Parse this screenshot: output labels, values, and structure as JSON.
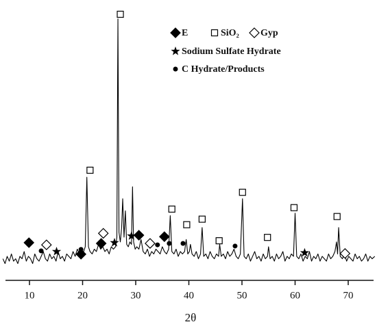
{
  "chart_data": {
    "type": "line",
    "xlabel": "2θ",
    "xlim": [
      5,
      75
    ],
    "xticks": [
      10,
      20,
      30,
      40,
      50,
      60,
      70
    ],
    "ylim": [
      0,
      114
    ],
    "series": [
      {
        "color": "#000000",
        "x": [
          5,
          5.4,
          5.8,
          6.2,
          6.6,
          7,
          7.4,
          7.8,
          8.2,
          8.6,
          9,
          9.4,
          9.8,
          10.2,
          10.6,
          11,
          11.4,
          11.8,
          12.2,
          12.6,
          13,
          13.4,
          13.8,
          14.2,
          14.6,
          15,
          15.4,
          15.8,
          16.2,
          16.6,
          17,
          17.4,
          17.8,
          18.2,
          18.6,
          19,
          19.4,
          19.8,
          20.2,
          20.5,
          20.8,
          21.1,
          21.4,
          21.8,
          22.2,
          22.6,
          23,
          23.4,
          23.8,
          24.2,
          24.6,
          25,
          25.4,
          25.8,
          26.2,
          26.45,
          26.65,
          26.85,
          27.1,
          27.35,
          27.55,
          27.8,
          28.05,
          28.3,
          28.6,
          28.9,
          29.2,
          29.4,
          29.6,
          29.9,
          30.2,
          30.6,
          31,
          31.4,
          31.8,
          32.2,
          32.6,
          33,
          33.4,
          33.8,
          34.2,
          34.6,
          35,
          35.4,
          35.8,
          36.2,
          36.5,
          36.8,
          37.2,
          37.6,
          38,
          38.4,
          38.8,
          39.2,
          39.5,
          39.8,
          40.1,
          40.3,
          40.6,
          41,
          41.4,
          41.8,
          42.2,
          42.5,
          42.8,
          43.2,
          43.6,
          44,
          44.4,
          44.8,
          45.2,
          45.6,
          45.8,
          46.1,
          46.5,
          46.9,
          47.3,
          47.7,
          48.1,
          48.5,
          48.9,
          49.3,
          49.7,
          50.1,
          50.4,
          50.8,
          51.2,
          51.6,
          52,
          52.4,
          52.8,
          53.2,
          53.6,
          54,
          54.4,
          54.8,
          55,
          55.3,
          55.7,
          56.1,
          56.5,
          56.9,
          57.3,
          57.7,
          58.1,
          58.5,
          58.9,
          59.3,
          59.7,
          60,
          60.3,
          60.7,
          61.1,
          61.5,
          61.9,
          62.3,
          62.7,
          63.1,
          63.5,
          63.9,
          64.3,
          64.7,
          65.1,
          65.5,
          65.9,
          66.3,
          66.7,
          67.1,
          67.5,
          67.8,
          68.0,
          68.2,
          68.5,
          68.9,
          69.3,
          69.7,
          70.1,
          70.5,
          70.9,
          71.3,
          71.7,
          72.1,
          72.5,
          72.9,
          73.3,
          73.7,
          74.1,
          74.5,
          75
        ],
        "values": [
          9,
          7,
          10,
          8,
          11,
          8,
          9,
          7,
          10,
          9,
          12,
          8,
          10,
          9,
          7,
          11,
          9,
          8,
          10,
          12,
          9,
          8,
          11,
          9,
          10,
          8,
          12,
          9,
          10,
          8,
          11,
          10,
          9,
          12,
          10,
          13,
          11,
          10,
          12,
          14,
          43,
          14,
          12,
          11,
          13,
          12,
          15,
          13,
          14,
          12,
          13,
          11,
          14,
          13,
          14,
          18,
          109,
          20,
          16,
          22,
          34,
          18,
          29,
          15,
          14,
          16,
          15,
          39,
          16,
          13,
          14,
          13,
          17,
          12,
          11,
          13,
          10,
          12,
          11,
          13,
          12,
          11,
          14,
          12,
          11,
          13,
          27,
          12,
          11,
          13,
          10,
          12,
          11,
          12,
          17,
          11,
          12,
          15,
          11,
          10,
          12,
          9,
          11,
          22,
          10,
          11,
          9,
          12,
          10,
          9,
          11,
          10,
          15,
          10,
          11,
          9,
          12,
          10,
          11,
          13,
          10,
          9,
          11,
          34,
          10,
          9,
          11,
          8,
          10,
          12,
          9,
          10,
          8,
          11,
          9,
          10,
          14,
          9,
          10,
          8,
          11,
          9,
          10,
          12,
          8,
          10,
          9,
          11,
          10,
          28,
          10,
          9,
          11,
          8,
          10,
          9,
          12,
          8,
          10,
          9,
          11,
          8,
          10,
          9,
          8,
          11,
          9,
          10,
          12,
          16,
          11,
          22,
          10,
          9,
          11,
          8,
          10,
          9,
          8,
          11,
          9,
          10,
          8,
          9,
          11,
          8,
          10,
          9,
          10
        ]
      }
    ],
    "markers": [
      {
        "name": "E",
        "symbol": "diamond-filled",
        "x": [
          9.9,
          19.7,
          23.5,
          30.6,
          35.4
        ],
        "values": [
          15.7,
          10.9,
          15.4,
          18.8,
          18.2
        ]
      },
      {
        "name": "SiO₂",
        "symbol": "square-open",
        "x": [
          21.4,
          27.1,
          36.8,
          39.6,
          42.5,
          45.7,
          50.1,
          54.8,
          59.8,
          67.9
        ],
        "values": [
          45.9,
          110.9,
          29.7,
          23.2,
          25.5,
          16.5,
          36.7,
          17.9,
          30.3,
          26.6
        ]
      },
      {
        "name": "Gyp",
        "symbol": "diamond-open",
        "x": [
          13.2,
          23.9,
          32.7,
          69.4
        ],
        "values": [
          14.8,
          19.6,
          15.4,
          11.2
        ]
      },
      {
        "name": "Sodium Sulfate Hydrate",
        "symbol": "star",
        "x": [
          15.1,
          26.0,
          29.2,
          61.8
        ],
        "values": [
          12.0,
          15.7,
          18.5,
          11.5
        ]
      },
      {
        "name": "C Hydrate/Products",
        "symbol": "circle-filled",
        "x": [
          12.2,
          19.7,
          34.1,
          36.3,
          38.9,
          48.7
        ],
        "values": [
          12.3,
          12.9,
          14.8,
          15.4,
          15.4,
          14.3
        ]
      }
    ]
  }
}
